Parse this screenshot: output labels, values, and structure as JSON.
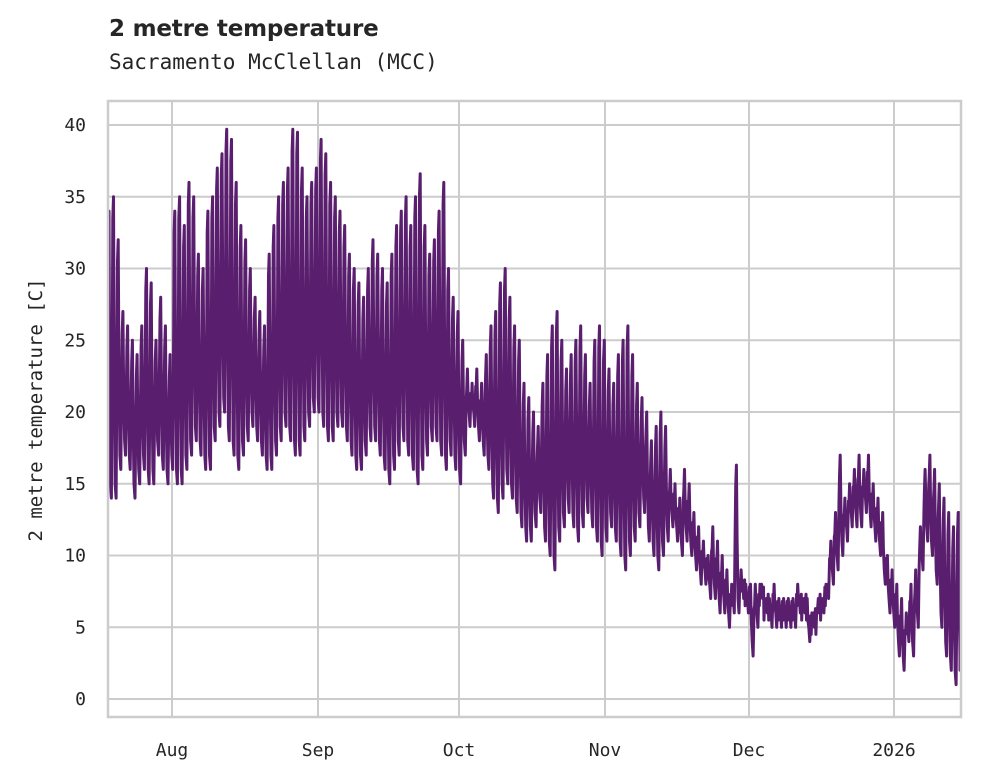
{
  "header": {
    "title": "2 metre temperature",
    "subtitle": "Sacramento McClellan (MCC)"
  },
  "axes": {
    "ylabel": "2 metre temperature [C]",
    "yticks": [
      "0",
      "5",
      "10",
      "15",
      "20",
      "25",
      "30",
      "35",
      "40"
    ],
    "xticks": [
      "Aug",
      "Sep",
      "Oct",
      "Nov",
      "Dec",
      "2026"
    ]
  },
  "colors": {
    "line": "#5a1e6e",
    "grid": "#cccccc",
    "frame": "#cccccc",
    "text": "#262626"
  },
  "chart_data": {
    "type": "line",
    "title": "2 metre temperature",
    "subtitle": "Sacramento McClellan (MCC)",
    "xlabel": "",
    "ylabel": "2 metre temperature [C]",
    "ylim": [
      -1.3,
      41.7
    ],
    "xlim": [
      "2025-07-18",
      "2026-01-15"
    ],
    "grid": true,
    "legend": null,
    "x_tick_labels": [
      "Aug",
      "Sep",
      "Oct",
      "Nov",
      "Dec",
      "2026"
    ],
    "y_tick_labels": [
      0,
      5,
      10,
      15,
      20,
      25,
      30,
      35,
      40
    ],
    "start_date": "2025-07-18",
    "resolution": "daily min/max (diurnal cycle)",
    "series": [
      {
        "name": "2 metre temperature [C]",
        "daily_min": [
          17,
          14,
          14,
          16,
          17,
          16,
          14,
          15,
          16,
          15,
          15,
          17,
          16,
          15,
          16,
          15,
          15,
          16,
          17,
          18,
          17,
          16,
          16,
          18,
          19,
          20,
          18,
          17,
          16,
          17,
          18,
          19,
          18,
          17,
          16,
          16,
          17,
          18,
          19,
          18,
          17,
          17,
          18,
          19,
          20,
          20,
          19,
          18,
          18,
          19,
          19,
          18,
          17,
          16,
          16,
          17,
          18,
          18,
          17,
          16,
          15,
          16,
          17,
          18,
          17,
          16,
          15,
          16,
          17,
          18,
          18,
          17,
          16,
          17,
          16,
          15,
          17,
          19,
          19,
          18,
          17,
          16,
          14,
          13,
          14,
          15,
          14,
          13,
          12,
          11,
          11,
          12,
          13,
          11,
          10,
          9,
          11,
          12,
          13,
          12,
          11,
          12,
          13,
          12,
          11,
          10,
          11,
          12,
          11,
          10,
          9,
          10,
          11,
          12,
          13,
          11,
          10,
          9,
          10,
          11,
          12,
          11,
          10,
          11,
          10,
          9,
          8,
          8,
          7,
          7,
          6,
          6,
          5,
          6,
          6,
          7,
          6,
          3,
          5,
          7,
          6,
          5,
          5,
          5,
          5,
          5,
          5,
          6,
          6,
          4,
          5,
          6,
          6,
          7,
          8,
          9,
          10,
          11,
          12,
          12,
          12,
          13,
          12,
          11,
          10,
          8,
          6,
          5,
          3,
          2,
          4,
          3,
          5,
          9,
          11,
          10,
          8,
          5,
          3,
          2,
          1,
          3,
          2,
          3
        ],
        "daily_max": [
          34,
          35,
          32,
          27,
          26,
          25,
          24,
          26,
          30,
          29,
          25,
          28,
          26,
          24,
          34,
          35,
          33,
          36,
          35,
          31,
          30,
          34,
          35,
          37,
          38,
          39.7,
          39,
          36,
          33,
          32,
          30,
          28,
          27,
          26,
          31,
          33,
          35,
          36,
          37,
          39.7,
          39.5,
          37,
          35,
          36,
          37,
          39,
          38,
          36,
          35,
          34,
          33,
          31,
          30,
          29,
          28,
          30,
          32,
          31,
          30,
          29,
          31,
          33,
          34,
          35,
          33,
          35,
          36.6,
          33,
          31,
          32,
          34,
          36,
          30,
          28,
          27,
          25,
          23,
          22,
          23,
          22,
          24,
          26,
          27,
          29,
          30,
          28,
          26,
          25,
          22,
          21,
          20,
          19,
          22,
          24,
          26,
          27,
          25,
          23,
          24,
          25,
          26,
          24,
          22,
          25,
          26,
          25,
          23,
          22,
          24,
          25,
          26,
          24,
          22,
          21,
          20,
          18,
          19,
          20,
          19,
          16,
          15,
          14,
          16,
          15,
          13,
          12,
          11,
          10,
          12,
          11,
          10,
          9,
          8,
          16.3,
          9,
          8,
          8,
          8,
          8,
          7,
          7,
          8,
          7,
          7,
          7,
          7,
          8,
          7,
          7,
          6,
          6,
          7,
          8,
          11,
          13,
          17,
          14,
          15,
          16,
          17,
          16,
          17,
          15,
          14,
          13,
          10,
          9,
          8,
          7,
          6,
          8,
          9,
          12,
          16,
          17,
          16,
          15,
          14,
          13,
          12,
          13,
          12,
          11,
          13,
          16
        ]
      }
    ]
  }
}
